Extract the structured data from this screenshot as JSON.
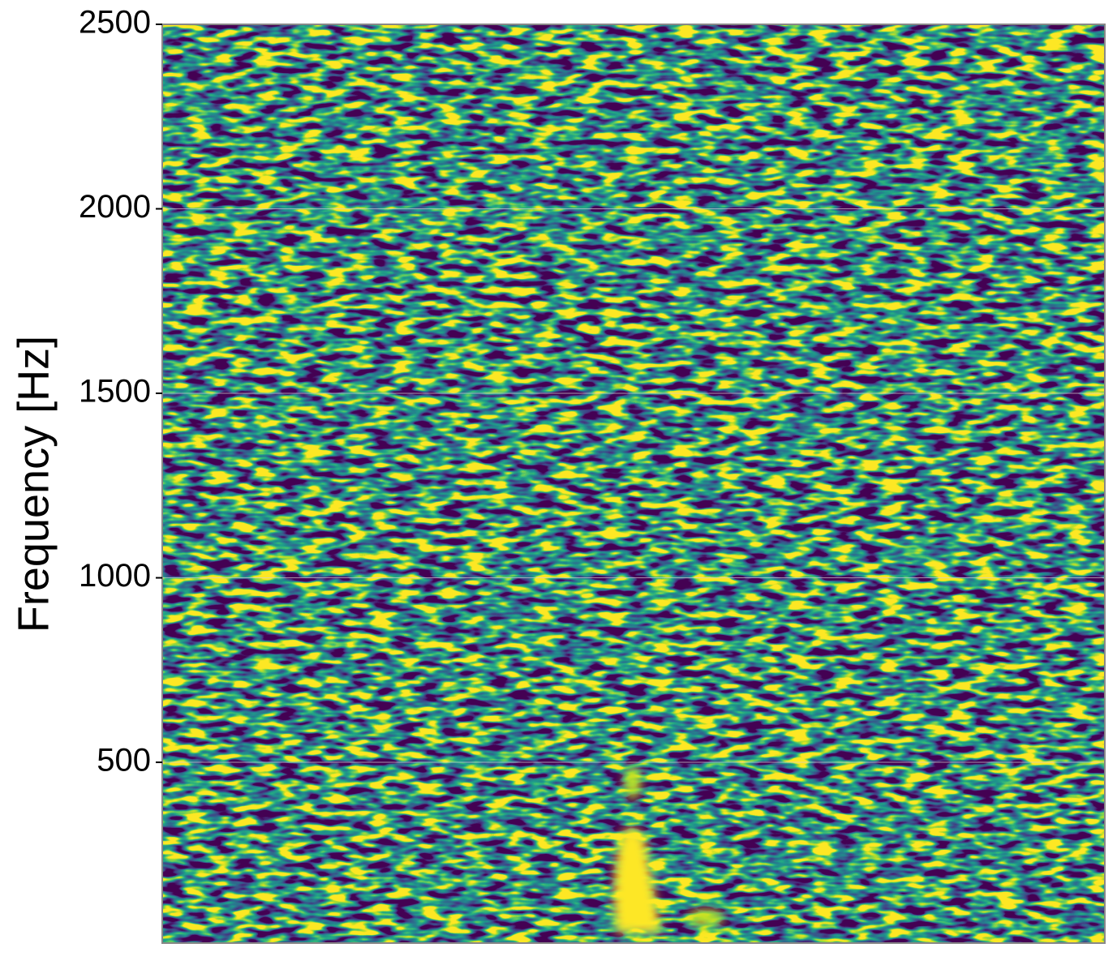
{
  "chart_data": {
    "type": "heatmap",
    "ylabel": "Frequency [Hz]",
    "ylim": [
      10,
      2500
    ],
    "yticks": [
      500,
      1000,
      1500,
      2000,
      2500
    ],
    "grid": true,
    "colormap": "viridis"
  }
}
